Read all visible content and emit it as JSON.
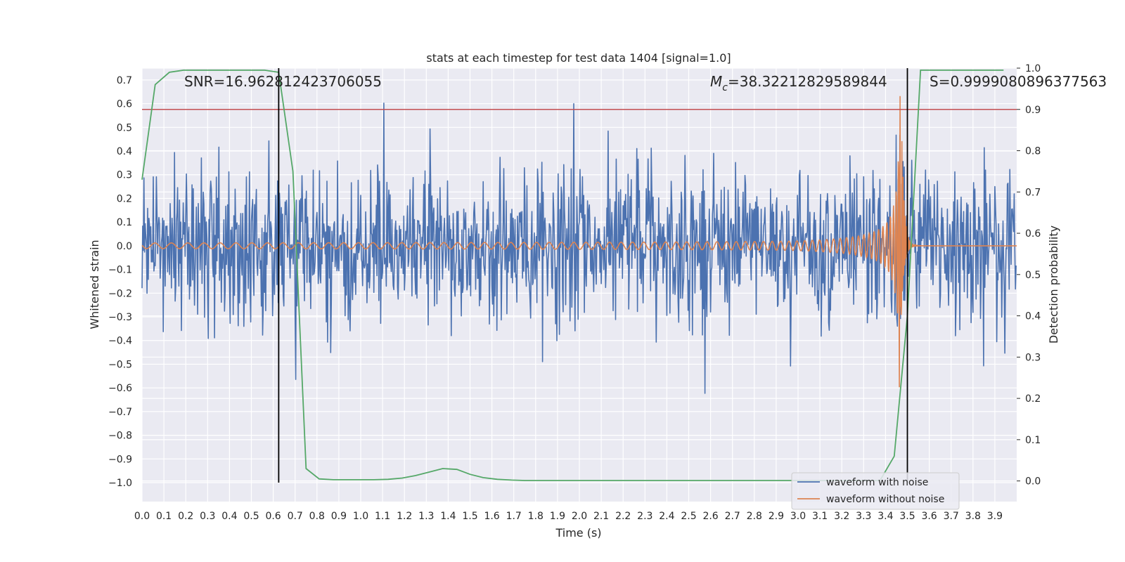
{
  "chart_data": {
    "type": "line",
    "title": "stats at each timestep for test data 1404 [signal=1.0]",
    "xlabel": "Time (s)",
    "ylabel": "Whitened strain",
    "y2label": "Detection probability",
    "xlim": [
      0.0,
      4.0
    ],
    "ylim": [
      -1.08,
      0.75
    ],
    "y2lim": [
      -0.05,
      1.0
    ],
    "x_ticks": [
      "0.0",
      "0.1",
      "0.2",
      "0.3",
      "0.4",
      "0.5",
      "0.6",
      "0.7",
      "0.8",
      "0.9",
      "1.0",
      "1.1",
      "1.2",
      "1.3",
      "1.4",
      "1.5",
      "1.6",
      "1.7",
      "1.8",
      "1.9",
      "2.0",
      "2.1",
      "2.2",
      "2.3",
      "2.4",
      "2.5",
      "2.6",
      "2.7",
      "2.8",
      "2.9",
      "3.0",
      "3.1",
      "3.2",
      "3.3",
      "3.4",
      "3.5",
      "3.6",
      "3.7",
      "3.8",
      "3.9"
    ],
    "y_ticks": [
      "0.7",
      "0.6",
      "0.5",
      "0.4",
      "0.3",
      "0.2",
      "0.1",
      "0.0",
      "−0.1",
      "−0.2",
      "−0.3",
      "−0.4",
      "−0.5",
      "−0.6",
      "−0.7",
      "−0.8",
      "−0.9",
      "−1.0"
    ],
    "y2_ticks": [
      "1.0",
      "0.9",
      "0.8",
      "0.7",
      "0.6",
      "0.5",
      "0.4",
      "0.3",
      "0.2",
      "0.1",
      "0.0"
    ],
    "annotations": {
      "snr": "SNR=16.962812423706055",
      "mc_symbol": "M",
      "mc_sub": "c",
      "mc_value": "=38.32212829589844",
      "s": "S=0.9999080896377563"
    },
    "threshold": {
      "value": 0.9,
      "axis": "y2",
      "color": "#c44e52"
    },
    "vlines": [
      0.625,
      3.5
    ],
    "series": [
      {
        "name": "waveform with noise",
        "color": "#4c72b0",
        "axis": "y",
        "kind": "noise",
        "amplitude_std": 0.16,
        "peak": 0.65,
        "trough": -0.63
      },
      {
        "name": "waveform without noise",
        "color": "#dd8452",
        "axis": "y",
        "kind": "chirp",
        "merger_time": 3.47,
        "peak_amplitude": 0.67
      },
      {
        "name": "detection probability",
        "color": "#55a868",
        "axis": "y2",
        "x": [
          0.0,
          0.06,
          0.125,
          0.19,
          0.25,
          0.31,
          0.375,
          0.44,
          0.5,
          0.56,
          0.625,
          0.69,
          0.75,
          0.81,
          0.875,
          0.94,
          1.0,
          1.06,
          1.125,
          1.19,
          1.25,
          1.31,
          1.375,
          1.44,
          1.5,
          1.56,
          1.625,
          1.69,
          1.75,
          1.81,
          1.875,
          2.0,
          2.5,
          3.0,
          3.375,
          3.44,
          3.5,
          3.56,
          3.625,
          3.69,
          3.75,
          3.81,
          3.875,
          3.94
        ],
        "values": [
          0.73,
          0.96,
          0.99,
          0.995,
          0.995,
          0.995,
          0.995,
          0.995,
          0.995,
          0.995,
          0.99,
          0.75,
          0.03,
          0.005,
          0.003,
          0.003,
          0.003,
          0.003,
          0.004,
          0.007,
          0.013,
          0.021,
          0.03,
          0.028,
          0.016,
          0.008,
          0.004,
          0.002,
          0.001,
          0.001,
          0.001,
          0.001,
          0.001,
          0.001,
          0.001,
          0.06,
          0.4,
          0.995,
          0.995,
          0.995,
          0.995,
          0.995,
          0.995,
          0.995
        ]
      }
    ],
    "legend": {
      "placement": "lower-right",
      "entries": [
        "waveform with noise",
        "waveform without noise"
      ]
    },
    "grid": true,
    "background": "#eaeaf2"
  }
}
